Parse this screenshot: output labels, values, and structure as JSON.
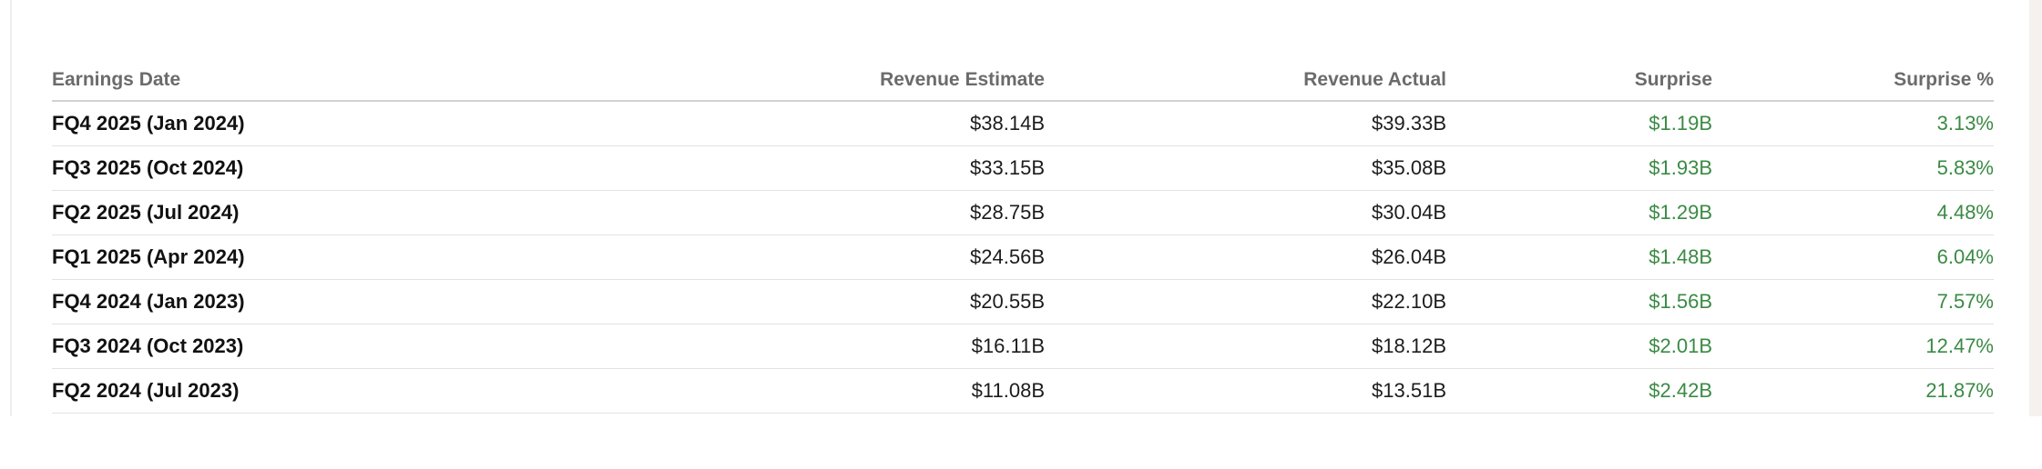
{
  "colors": {
    "positive": "#3a8a44",
    "header_text": "#6b6b6b",
    "body_text": "#1c1c1c"
  },
  "table": {
    "columns": [
      "Earnings Date",
      "Revenue Estimate",
      "Revenue Actual",
      "Surprise",
      "Surprise %"
    ],
    "rows": [
      {
        "date": "FQ4 2025 (Jan 2024)",
        "estimate": "$38.14B",
        "actual": "$39.33B",
        "surprise": "$1.19B",
        "surprise_pct": "3.13%"
      },
      {
        "date": "FQ3 2025 (Oct 2024)",
        "estimate": "$33.15B",
        "actual": "$35.08B",
        "surprise": "$1.93B",
        "surprise_pct": "5.83%"
      },
      {
        "date": "FQ2 2025 (Jul 2024)",
        "estimate": "$28.75B",
        "actual": "$30.04B",
        "surprise": "$1.29B",
        "surprise_pct": "4.48%"
      },
      {
        "date": "FQ1 2025 (Apr 2024)",
        "estimate": "$24.56B",
        "actual": "$26.04B",
        "surprise": "$1.48B",
        "surprise_pct": "6.04%"
      },
      {
        "date": "FQ4 2024 (Jan 2023)",
        "estimate": "$20.55B",
        "actual": "$22.10B",
        "surprise": "$1.56B",
        "surprise_pct": "7.57%"
      },
      {
        "date": "FQ3 2024 (Oct 2023)",
        "estimate": "$16.11B",
        "actual": "$18.12B",
        "surprise": "$2.01B",
        "surprise_pct": "12.47%"
      },
      {
        "date": "FQ2 2024 (Jul 2023)",
        "estimate": "$11.08B",
        "actual": "$13.51B",
        "surprise": "$2.42B",
        "surprise_pct": "21.87%"
      }
    ]
  }
}
